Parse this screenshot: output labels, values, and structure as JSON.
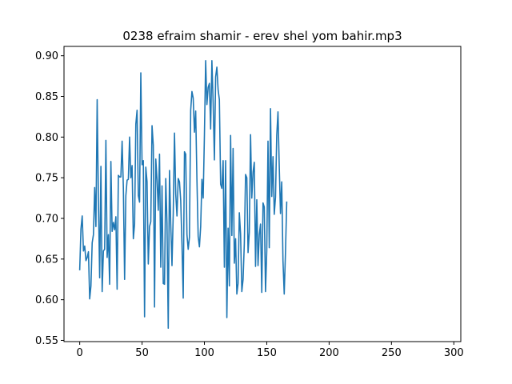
{
  "chart_data": {
    "type": "line",
    "title": "0238 efraim shamir - erev shel yom bahir.mp3",
    "xlabel": "",
    "ylabel": "",
    "xlim": [
      -12.6,
      305.6
    ],
    "ylim": [
      0.5485,
      0.9115
    ],
    "x_ticks": [
      0,
      50,
      100,
      150,
      200,
      250,
      300
    ],
    "y_ticks": [
      0.55,
      0.6,
      0.65,
      0.7,
      0.75,
      0.8,
      0.85,
      0.9
    ],
    "x_tick_labels": [
      "0",
      "50",
      "100",
      "150",
      "200",
      "250",
      "300"
    ],
    "y_tick_labels": [
      "0.55",
      "0.60",
      "0.65",
      "0.70",
      "0.75",
      "0.80",
      "0.85",
      "0.90"
    ],
    "grid": false,
    "line_color": "#1f77b4",
    "series": [
      {
        "name": "",
        "values": [
          0.637,
          0.687,
          0.703,
          0.66,
          0.666,
          0.648,
          0.652,
          0.659,
          0.601,
          0.617,
          0.67,
          0.68,
          0.738,
          0.69,
          0.846,
          0.723,
          0.627,
          0.764,
          0.61,
          0.66,
          0.662,
          0.796,
          0.652,
          0.68,
          0.619,
          0.77,
          0.684,
          0.695,
          0.686,
          0.702,
          0.613,
          0.753,
          0.751,
          0.751,
          0.795,
          0.738,
          0.625,
          0.728,
          0.747,
          0.748,
          0.8,
          0.75,
          0.765,
          0.675,
          0.693,
          0.816,
          0.833,
          0.728,
          0.72,
          0.879,
          0.766,
          0.771,
          0.579,
          0.763,
          0.745,
          0.644,
          0.69,
          0.696,
          0.814,
          0.79,
          0.591,
          0.773,
          0.748,
          0.71,
          0.779,
          0.64,
          0.74,
          0.62,
          0.619,
          0.749,
          0.694,
          0.565,
          0.759,
          0.693,
          0.642,
          0.706,
          0.805,
          0.73,
          0.703,
          0.749,
          0.745,
          0.722,
          0.668,
          0.602,
          0.782,
          0.779,
          0.68,
          0.662,
          0.677,
          0.833,
          0.856,
          0.848,
          0.806,
          0.832,
          0.748,
          0.678,
          0.665,
          0.69,
          0.748,
          0.725,
          0.802,
          0.894,
          0.84,
          0.861,
          0.866,
          0.81,
          0.894,
          0.842,
          0.772,
          0.874,
          0.886,
          0.858,
          0.846,
          0.742,
          0.737,
          0.771,
          0.64,
          0.771,
          0.578,
          0.688,
          0.617,
          0.802,
          0.679,
          0.786,
          0.645,
          0.675,
          0.607,
          0.62,
          0.707,
          0.681,
          0.61,
          0.625,
          0.669,
          0.754,
          0.75,
          0.658,
          0.683,
          0.803,
          0.725,
          0.757,
          0.769,
          0.641,
          0.723,
          0.642,
          0.68,
          0.693,
          0.609,
          0.719,
          0.714,
          0.61,
          0.66,
          0.795,
          0.664,
          0.835,
          0.727,
          0.776,
          0.705,
          0.726,
          0.802,
          0.831,
          0.765,
          0.706,
          0.745,
          0.648,
          0.607,
          0.658,
          0.72
        ]
      }
    ]
  }
}
